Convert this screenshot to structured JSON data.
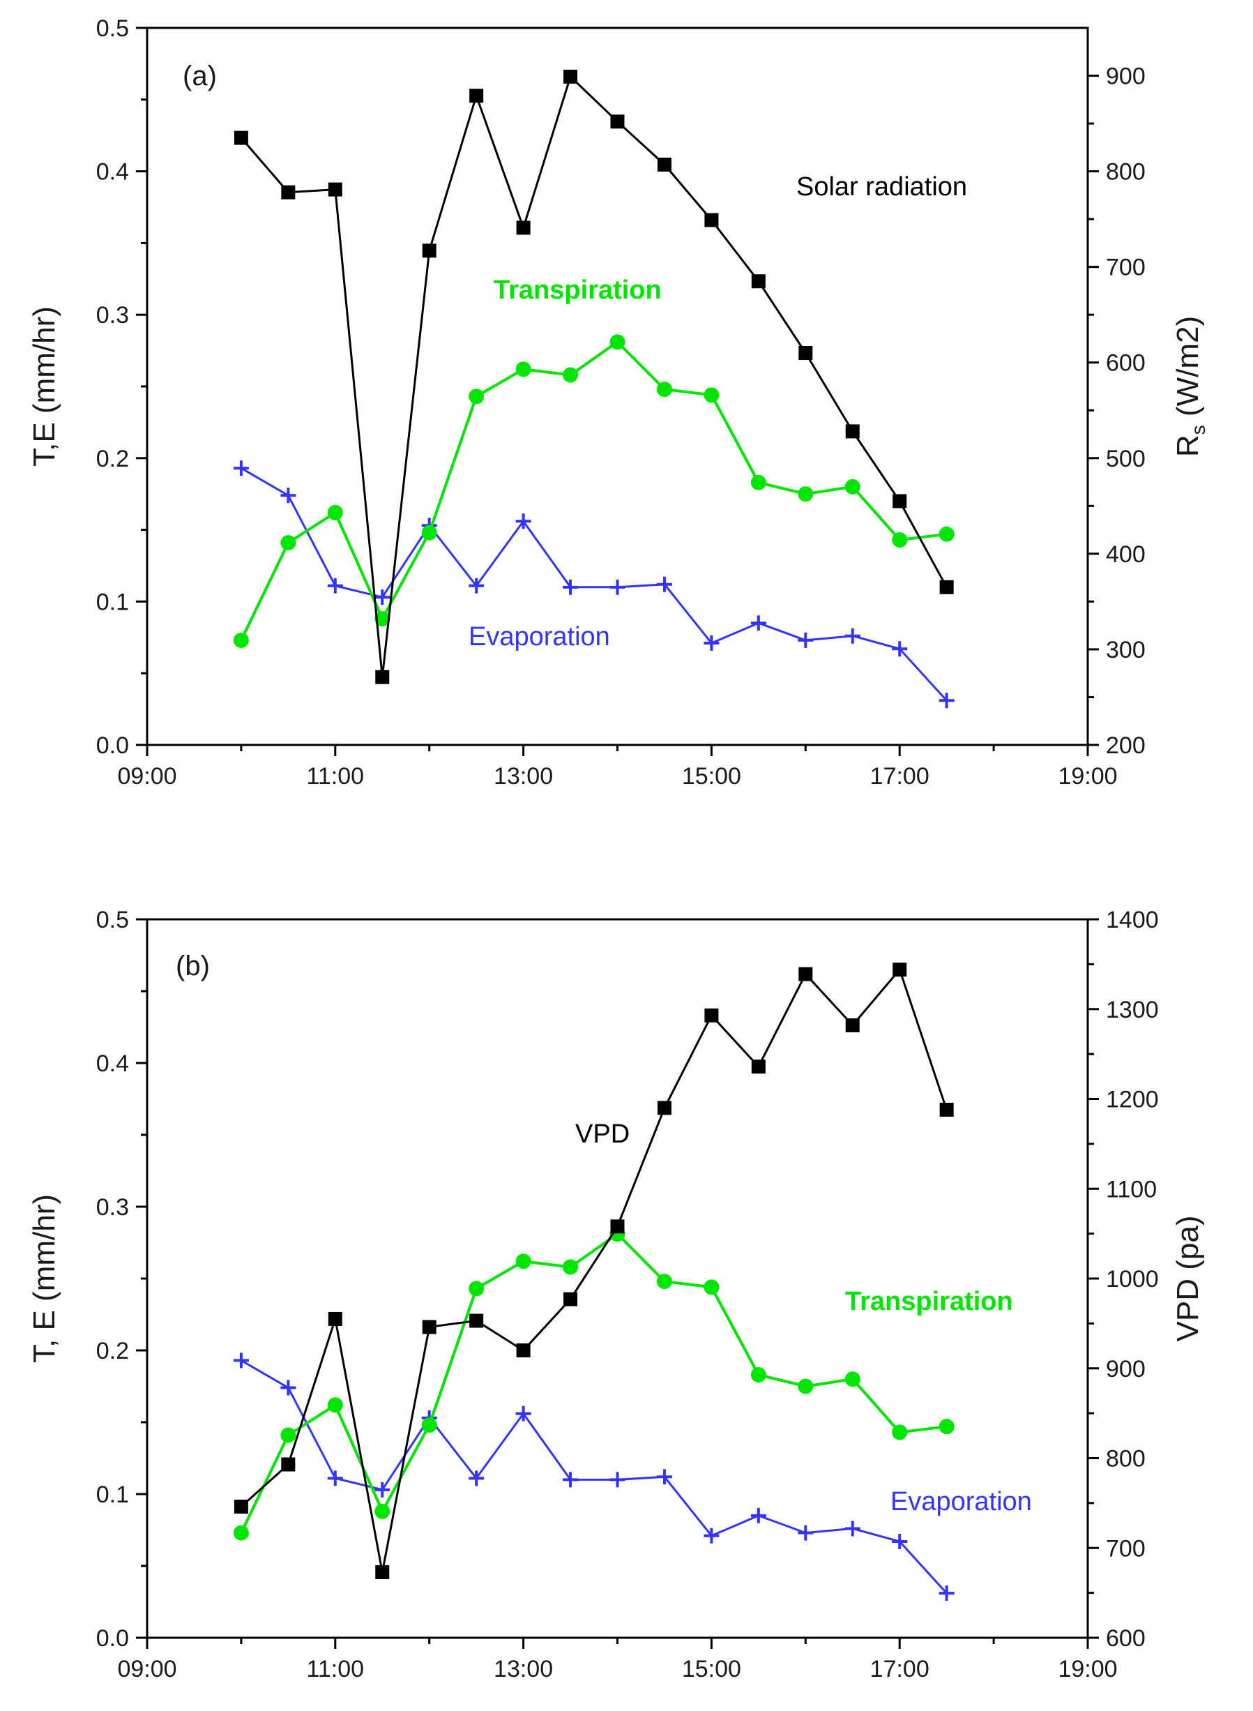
{
  "chart_data": [
    {
      "type": "line",
      "panel_label": "(a)",
      "xlabel": "",
      "ylabel_left": "T,E (mm/hr)",
      "ylabel_right_base": "R",
      "ylabel_right_sub": "s",
      "ylabel_right_rest": " (W/m2)",
      "xlim_hours": [
        9,
        19
      ],
      "x_ticks": [
        "09:00",
        "11:00",
        "13:00",
        "15:00",
        "17:00",
        "19:00"
      ],
      "ylim_left": [
        0.0,
        0.5
      ],
      "y_ticks_left": [
        "0.0",
        "0.1",
        "0.2",
        "0.3",
        "0.4",
        "0.5"
      ],
      "ylim_right": [
        200,
        950
      ],
      "y_ticks_right": [
        "200",
        "300",
        "400",
        "500",
        "600",
        "700",
        "800",
        "900"
      ],
      "x": [
        "10:00",
        "10:30",
        "11:00",
        "11:30",
        "12:00",
        "12:30",
        "13:00",
        "13:30",
        "14:00",
        "14:30",
        "15:00",
        "15:30",
        "16:00",
        "16:30",
        "17:00",
        "17:30"
      ],
      "series": [
        {
          "name": "Solar radiation",
          "axis": "right",
          "color": "#000000",
          "marker": "square",
          "values": [
            835,
            778,
            781,
            271,
            717,
            879,
            741,
            899,
            852,
            807,
            749,
            685,
            610,
            528,
            455,
            365
          ]
        },
        {
          "name": "Transpiration",
          "axis": "left",
          "color": "#00e600",
          "marker": "circle",
          "values": [
            0.073,
            0.141,
            0.162,
            0.088,
            0.148,
            0.243,
            0.262,
            0.258,
            0.281,
            0.248,
            0.244,
            0.183,
            0.175,
            0.18,
            0.143,
            0.147
          ]
        },
        {
          "name": "Evaporation",
          "axis": "left",
          "color": "#3333ff",
          "marker": "plus",
          "values": [
            0.193,
            0.174,
            0.111,
            0.103,
            0.153,
            0.111,
            0.156,
            0.11,
            0.11,
            0.112,
            0.071,
            0.085,
            0.073,
            0.076,
            0.067,
            0.031
          ]
        }
      ]
    },
    {
      "type": "line",
      "panel_label": "(b)",
      "xlabel": "",
      "ylabel_left": "T, E (mm/hr)",
      "ylabel_right": "VPD (pa)",
      "xlim_hours": [
        9,
        19
      ],
      "x_ticks": [
        "09:00",
        "11:00",
        "13:00",
        "15:00",
        "17:00",
        "19:00"
      ],
      "ylim_left": [
        0.0,
        0.5
      ],
      "y_ticks_left": [
        "0.0",
        "0.1",
        "0.2",
        "0.3",
        "0.4",
        "0.5"
      ],
      "ylim_right": [
        600,
        1400
      ],
      "y_ticks_right": [
        "600",
        "700",
        "800",
        "900",
        "1000",
        "1100",
        "1200",
        "1300",
        "1400"
      ],
      "x": [
        "10:00",
        "10:30",
        "11:00",
        "11:30",
        "12:00",
        "12:30",
        "13:00",
        "13:30",
        "14:00",
        "14:30",
        "15:00",
        "15:30",
        "16:00",
        "16:30",
        "17:00",
        "17:30"
      ],
      "series": [
        {
          "name": "VPD",
          "axis": "right",
          "color": "#000000",
          "marker": "square",
          "values": [
            746,
            793,
            955,
            673,
            946,
            953,
            920,
            977,
            1058,
            1190,
            1293,
            1236,
            1339,
            1282,
            1344,
            1188
          ]
        },
        {
          "name": "Transpiration",
          "axis": "left",
          "color": "#00e600",
          "marker": "circle",
          "values": [
            0.073,
            0.141,
            0.162,
            0.088,
            0.148,
            0.243,
            0.262,
            0.258,
            0.281,
            0.248,
            0.244,
            0.183,
            0.175,
            0.18,
            0.143,
            0.147
          ]
        },
        {
          "name": "Evaporation",
          "axis": "left",
          "color": "#3333ff",
          "marker": "plus",
          "values": [
            0.193,
            0.174,
            0.111,
            0.103,
            0.153,
            0.111,
            0.156,
            0.11,
            0.11,
            0.112,
            0.071,
            0.085,
            0.073,
            0.076,
            0.067,
            0.031
          ]
        }
      ]
    }
  ]
}
